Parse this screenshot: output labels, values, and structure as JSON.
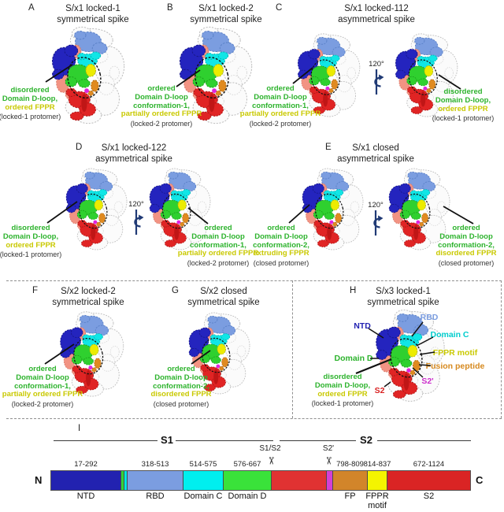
{
  "colors": {
    "green": "#2db32d",
    "yellow": "#c9c900",
    "orange": "#d6891e",
    "magenta": "#cc2fcc",
    "red": "#d92222",
    "navy": "#2323b2",
    "cornflower": "#7b9de0",
    "cyan": "#00cdcd"
  },
  "ui": {
    "rotation_label": "120°",
    "icons": {
      "scissors": "✂"
    }
  },
  "panels": {
    "A": {
      "letter": "A",
      "title": [
        "S/x1 locked-1",
        "symmetrical spike"
      ],
      "annotations": [
        {
          "green_lines": [
            "disordered",
            "Domain D-loop,"
          ],
          "yellow": "ordered FPPR",
          "caption": "(locked-1 protomer)"
        }
      ]
    },
    "B": {
      "letter": "B",
      "title": [
        "S/x1 locked-2",
        "symmetrical spike"
      ],
      "annotations": [
        {
          "green_lines": [
            "ordered",
            "Domain D-loop",
            "conformation-1,"
          ],
          "yellow": "partially ordered FPPR",
          "caption": "(locked-2 protomer)"
        }
      ]
    },
    "C": {
      "letter": "C",
      "title": [
        "S/x1 locked-112",
        "asymmetrical spike"
      ],
      "annotations": [
        {
          "green_lines": [
            "ordered",
            "Domain D-loop",
            "conformation-1,"
          ],
          "yellow": "partially ordered FPPR",
          "caption": "(locked-2 protomer)"
        },
        {
          "green_lines": [
            "disordered",
            "Domain D-loop,"
          ],
          "yellow": "ordered FPPR",
          "caption": "(locked-1 protomer)"
        }
      ]
    },
    "D": {
      "letter": "D",
      "title": [
        "S/x1 locked-122",
        "asymmetrical spike"
      ],
      "annotations": [
        {
          "green_lines": [
            "disordered",
            "Domain D-loop,"
          ],
          "yellow": "ordered FPPR",
          "caption": "(locked-1 protomer)"
        },
        {
          "green_lines": [
            "ordered",
            "Domain D-loop",
            "conformation-1,"
          ],
          "yellow": "partially ordered FPPR",
          "caption": "(locked-2 protomer)"
        }
      ]
    },
    "E": {
      "letter": "E",
      "title": [
        "S/x1 closed",
        "asymmetrical spike"
      ],
      "annotations": [
        {
          "green_lines": [
            "ordered",
            "Domain D-loop",
            "conformation-2,"
          ],
          "yellow": "extruding FPPR",
          "caption": "(closed protomer)"
        },
        {
          "green_lines": [
            "ordered",
            "Domain D-loop",
            "conformation-2,"
          ],
          "yellow": "disordered FPPR",
          "caption": "(closed protomer)"
        }
      ]
    },
    "F": {
      "letter": "F",
      "title": [
        "S/x2 locked-2",
        "symmetrical spike"
      ],
      "annotations": [
        {
          "green_lines": [
            "ordered",
            "Domain D-loop",
            "conformation-1,"
          ],
          "yellow": "partially ordered FPPR",
          "caption": "(locked-2 protomer)"
        }
      ]
    },
    "G": {
      "letter": "G",
      "title": [
        "S/x2 closed",
        "symmetrical spike"
      ],
      "annotations": [
        {
          "green_lines": [
            "ordered",
            "Domain D-loop",
            "conformation-2,"
          ],
          "yellow": "disordered FPPR",
          "caption": "(closed protomer)"
        }
      ]
    },
    "H": {
      "letter": "H",
      "title": [
        "S/x3 locked-1",
        "symmetrical spike"
      ],
      "labels": {
        "ntd": "NTD",
        "rbd": "RBD",
        "domain_c": "Domain C",
        "fppr_motif": "FPPR motif",
        "domain_d": "Domain D",
        "fusion_peptide": "Fusion peptide",
        "s2_prime": "S2'",
        "s2": "S2"
      },
      "annotations": [
        {
          "green_lines": [
            "disordered",
            "Domain D-loop,"
          ],
          "yellow": "ordered FPPR",
          "caption": "(locked-1 protomer)"
        }
      ]
    },
    "I": {
      "letter": "I"
    }
  },
  "domain_bar": {
    "n_label": "N",
    "c_label": "C",
    "s1_label": "S1",
    "s2_label": "S2",
    "cleavage_sites": [
      {
        "label": "S1/S2"
      },
      {
        "label": "S2'"
      }
    ],
    "segments": [
      {
        "name": "NTD",
        "range": "17-292",
        "color": "#2222b0"
      },
      {
        "name": "",
        "range": "",
        "color": "#35d435"
      },
      {
        "name": "",
        "range": "",
        "color": "#00e5e5"
      },
      {
        "name": "RBD",
        "range": "318-513",
        "color": "#7b9de0"
      },
      {
        "name": "Domain C",
        "range": "514-575",
        "color": "#00efef"
      },
      {
        "name": "Domain D",
        "range": "576-667",
        "color": "#3ae23a"
      },
      {
        "name": "",
        "range": "",
        "color": "#e03232"
      },
      {
        "name": "",
        "range": "",
        "color": "#d43fd4"
      },
      {
        "name": "FP",
        "range": "798-809",
        "color": "#d2852a"
      },
      {
        "name": "FPPR motif",
        "name_lines": [
          "FPPR",
          "motif"
        ],
        "range": "814-837",
        "color": "#f4f400"
      },
      {
        "name": "S2",
        "range": "672-1124",
        "color": "#da2424"
      }
    ]
  }
}
